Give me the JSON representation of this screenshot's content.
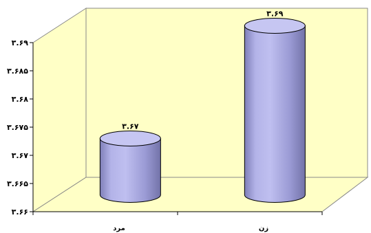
{
  "chart_data": {
    "type": "bar",
    "shape": "cylinder",
    "title": "",
    "xlabel": "",
    "ylabel": "",
    "categories": [
      "مرد",
      "زن"
    ],
    "values": [
      3.67,
      3.69
    ],
    "data_labels": [
      "۳.۶۷",
      "۳.۶۹"
    ],
    "ylim": [
      3.66,
      3.69
    ],
    "y_ticks": [
      3.66,
      3.665,
      3.67,
      3.675,
      3.68,
      3.685,
      3.69
    ],
    "y_tick_labels": [
      "۳.۶۶",
      "۳.۶۶۵",
      "۳.۶۷",
      "۳.۶۷۵",
      "۳.۶۸",
      "۳.۶۸۵",
      "۳.۶۹"
    ],
    "grid": false,
    "legend": "none",
    "colors": {
      "bar_body": "#a9a8e0",
      "bar_top": "#c6c6f2",
      "bar_outline": "#000000",
      "walls": "#ffffc6",
      "floor": "#ffffc6",
      "wall_edges": "#888888"
    }
  }
}
